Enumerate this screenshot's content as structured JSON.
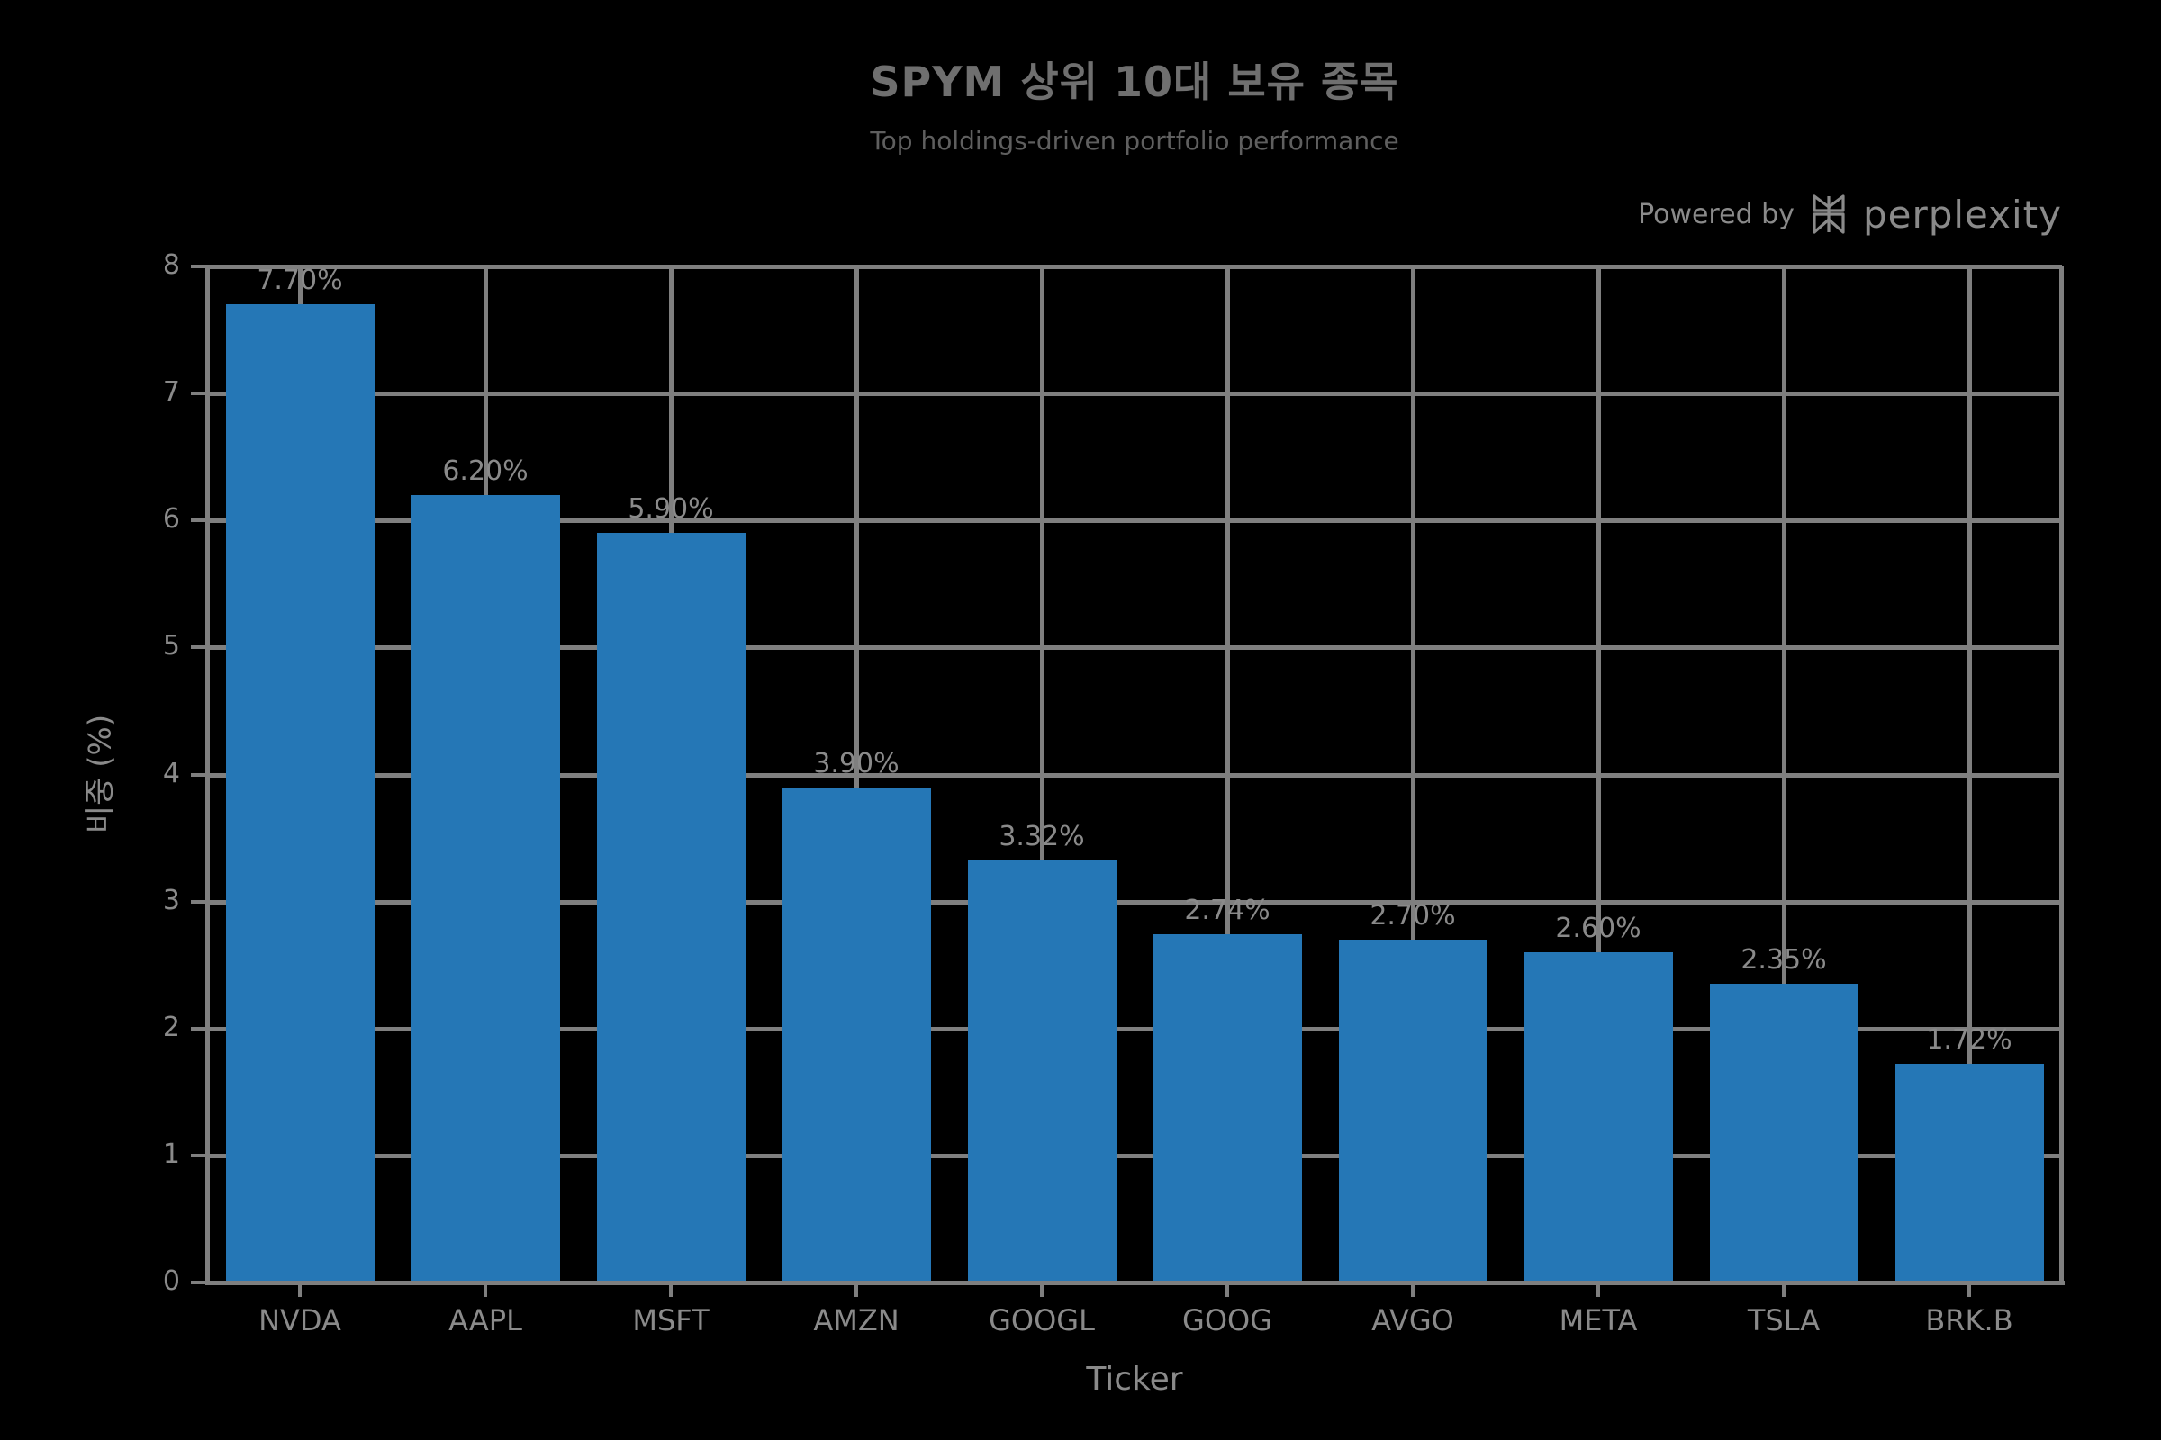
{
  "title": "SPYM 상위 10대 보유 종목",
  "subtitle": "Top holdings-driven portfolio performance",
  "powered_by": {
    "prefix": "Powered by",
    "brand": "perplexity",
    "logo_icon": "perplexity-asterisk-icon"
  },
  "colors": {
    "background": "#000000",
    "bar": "#2577b6",
    "grid": "#7f7f7f",
    "text": "#8a8a8a",
    "title_text": "#6f6f6f"
  },
  "chart_data": {
    "type": "bar",
    "title": "SPYM 상위 10대 보유 종목",
    "subtitle": "Top holdings-driven portfolio performance",
    "xlabel": "Ticker",
    "ylabel": "비중 (%)",
    "categories": [
      "NVDA",
      "AAPL",
      "MSFT",
      "AMZN",
      "GOOGL",
      "GOOG",
      "AVGO",
      "META",
      "TSLA",
      "BRK.B"
    ],
    "values": [
      7.7,
      6.2,
      5.9,
      3.9,
      3.32,
      2.74,
      2.7,
      2.6,
      2.35,
      1.72
    ],
    "bar_labels": [
      "7.70%",
      "6.20%",
      "5.90%",
      "3.90%",
      "3.32%",
      "2.74%",
      "2.70%",
      "2.60%",
      "2.35%",
      "1.72%"
    ],
    "ylim": [
      0,
      8
    ],
    "yticks": [
      0,
      1,
      2,
      3,
      4,
      5,
      6,
      7,
      8
    ],
    "grid": true,
    "legend": null,
    "bar_color": "#2577b6"
  }
}
